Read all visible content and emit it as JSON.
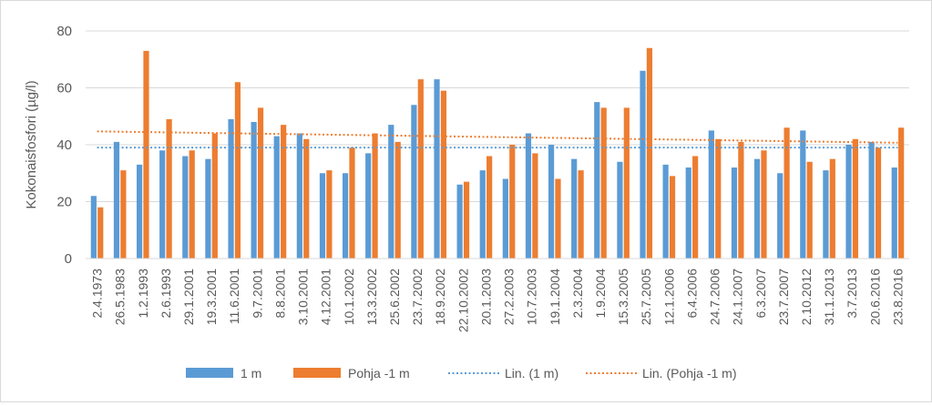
{
  "chart_data": {
    "type": "bar",
    "title": "",
    "xlabel": "",
    "ylabel": "Kokonaisfosfori (µg/l)",
    "ylim": [
      0,
      80
    ],
    "yticks": [
      0,
      20,
      40,
      60,
      80
    ],
    "grid": true,
    "legend_position": "bottom",
    "categories": [
      "2.4.1973",
      "26.5.1983",
      "1.2.1993",
      "2.6.1993",
      "29.1.2001",
      "19.3.2001",
      "11.6.2001",
      "9.7.2001",
      "8.8.2001",
      "3.10.2001",
      "4.12.2001",
      "10.1.2002",
      "13.3.2002",
      "25.6.2002",
      "23.7.2002",
      "18.9.2002",
      "22.10.2002",
      "20.1.2003",
      "27.2.2003",
      "10.7.2003",
      "19.1.2004",
      "2.3.2004",
      "1.9.2004",
      "15.3.2005",
      "25.7.2005",
      "12.1.2006",
      "6.4.2006",
      "24.7.2006",
      "24.1.2007",
      "6.3.2007",
      "23.7.2007",
      "2.10.2012",
      "31.1.2013",
      "3.7.2013",
      "20.6.2016",
      "23.8.2016"
    ],
    "series": [
      {
        "name": "1 m",
        "color": "#5b9bd5",
        "values": [
          22,
          41,
          33,
          38,
          36,
          35,
          49,
          48,
          43,
          44,
          30,
          30,
          37,
          47,
          54,
          63,
          26,
          31,
          28,
          44,
          40,
          35,
          55,
          34,
          66,
          33,
          32,
          45,
          32,
          35,
          30,
          45,
          31,
          40,
          41,
          32
        ]
      },
      {
        "name": "Pohja -1 m",
        "color": "#ed7d31",
        "values": [
          18,
          31,
          73,
          49,
          38,
          44,
          62,
          53,
          47,
          42,
          31,
          39,
          44,
          41,
          63,
          59,
          27,
          36,
          40,
          37,
          28,
          31,
          53,
          53,
          74,
          29,
          36,
          42,
          41,
          38,
          46,
          34,
          35,
          42,
          39,
          46
        ]
      }
    ],
    "trendlines": [
      {
        "name": "Lin. (1 m)",
        "color": "#5b9bd5",
        "start": 39,
        "end": 39
      },
      {
        "name": "Lin. (Pohja -1 m)",
        "color": "#ed7d31",
        "start": 44.7,
        "end": 40.7
      }
    ]
  }
}
